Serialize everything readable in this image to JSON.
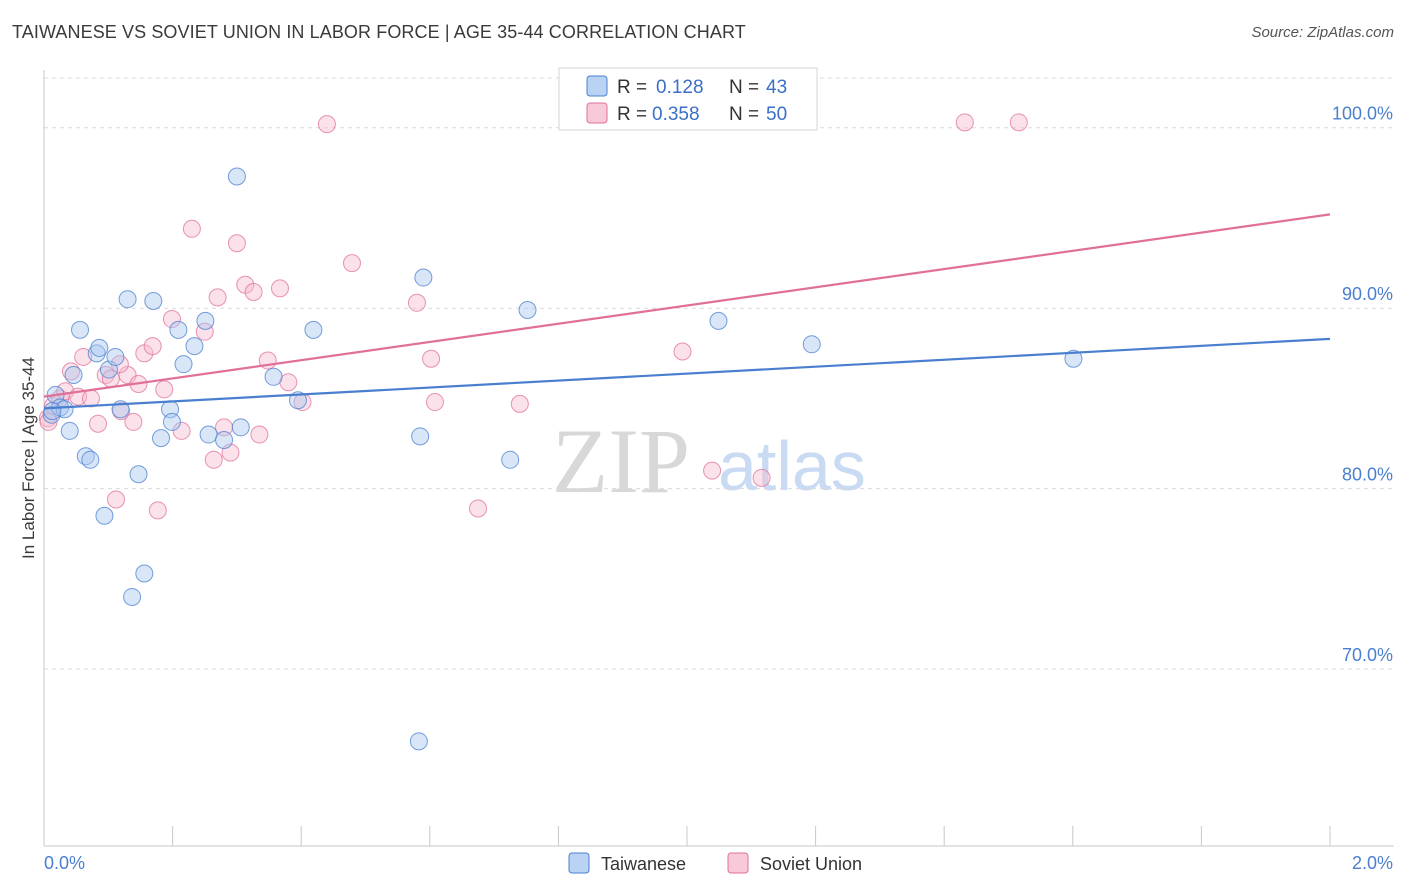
{
  "title": "TAIWANESE VS SOVIET UNION IN LABOR FORCE | AGE 35-44 CORRELATION CHART",
  "source": "Source: ZipAtlas.com",
  "watermark": {
    "zip": "ZIP",
    "atlas": "atlas"
  },
  "colors": {
    "blue": "#4a7fd0",
    "pink": "#e0709a",
    "blue_fill": "#a9c8f0",
    "pink_fill": "#f6bcd0"
  },
  "legend": {
    "rows": [
      {
        "r_label": "R =",
        "r_value": "0.128",
        "n_label": "N =",
        "n_value": "43"
      },
      {
        "r_label": "R =",
        "r_value": "0.358",
        "n_label": "N =",
        "n_value": "50"
      }
    ]
  },
  "chart_data": {
    "type": "scatter",
    "title": "TAIWANESE VS SOVIET UNION IN LABOR FORCE | AGE 35-44 CORRELATION CHART",
    "xlabel": "",
    "ylabel": "In Labor Force | Age 35-44",
    "xlim": [
      0,
      2.0
    ],
    "ylim": [
      60.2,
      103.2
    ],
    "x_tick_labels": [
      "0.0%",
      "2.0%"
    ],
    "y_ticks": [
      70,
      80,
      90,
      100
    ],
    "y_tick_labels": [
      "70.0%",
      "80.0%",
      "90.0%",
      "100.0%"
    ],
    "series": [
      {
        "name": "Taiwanese",
        "color": "blue",
        "trend": {
          "x0": 0.0,
          "y0": 84.45,
          "x1": 2.0,
          "y1": 88.3
        },
        "points": [
          [
            0.012,
            84.1
          ],
          [
            0.018,
            85.2
          ],
          [
            0.025,
            84.5
          ],
          [
            0.032,
            84.4
          ],
          [
            0.04,
            83.2
          ],
          [
            0.046,
            86.3
          ],
          [
            0.056,
            88.8
          ],
          [
            0.065,
            81.8
          ],
          [
            0.072,
            81.6
          ],
          [
            0.082,
            87.5
          ],
          [
            0.086,
            87.8
          ],
          [
            0.094,
            78.5
          ],
          [
            0.101,
            86.6
          ],
          [
            0.111,
            87.3
          ],
          [
            0.119,
            84.4
          ],
          [
            0.13,
            90.5
          ],
          [
            0.137,
            74.0
          ],
          [
            0.147,
            80.8
          ],
          [
            0.156,
            75.3
          ],
          [
            0.17,
            90.4
          ],
          [
            0.182,
            82.8
          ],
          [
            0.196,
            84.4
          ],
          [
            0.199,
            83.7
          ],
          [
            0.209,
            88.8
          ],
          [
            0.217,
            86.9
          ],
          [
            0.234,
            87.9
          ],
          [
            0.251,
            89.3
          ],
          [
            0.256,
            83.0
          ],
          [
            0.28,
            82.7
          ],
          [
            0.3,
            97.3
          ],
          [
            0.306,
            83.4
          ],
          [
            0.357,
            86.2
          ],
          [
            0.395,
            84.9
          ],
          [
            0.419,
            88.8
          ],
          [
            0.583,
            66.0
          ],
          [
            0.585,
            82.9
          ],
          [
            0.59,
            91.7
          ],
          [
            0.725,
            81.6
          ],
          [
            0.752,
            89.9
          ],
          [
            1.049,
            89.3
          ],
          [
            1.194,
            88.0
          ],
          [
            1.601,
            87.2
          ],
          [
            0.013,
            84.3
          ]
        ]
      },
      {
        "name": "Soviet Union",
        "color": "pink",
        "trend": {
          "x0": 0.0,
          "y0": 85.1,
          "x1": 2.0,
          "y1": 95.2
        },
        "points": [
          [
            0.006,
            83.9
          ],
          [
            0.014,
            84.6
          ],
          [
            0.025,
            85.0
          ],
          [
            0.033,
            85.4
          ],
          [
            0.042,
            86.5
          ],
          [
            0.053,
            85.1
          ],
          [
            0.061,
            87.3
          ],
          [
            0.073,
            85.0
          ],
          [
            0.084,
            83.6
          ],
          [
            0.096,
            86.3
          ],
          [
            0.104,
            86.1
          ],
          [
            0.112,
            79.4
          ],
          [
            0.12,
            84.3
          ],
          [
            0.13,
            86.3
          ],
          [
            0.139,
            83.7
          ],
          [
            0.147,
            85.8
          ],
          [
            0.156,
            87.5
          ],
          [
            0.169,
            87.9
          ],
          [
            0.177,
            78.8
          ],
          [
            0.187,
            85.5
          ],
          [
            0.199,
            89.4
          ],
          [
            0.214,
            83.2
          ],
          [
            0.23,
            94.4
          ],
          [
            0.25,
            88.7
          ],
          [
            0.264,
            81.6
          ],
          [
            0.28,
            83.4
          ],
          [
            0.29,
            82.0
          ],
          [
            0.3,
            93.6
          ],
          [
            0.313,
            91.3
          ],
          [
            0.326,
            90.9
          ],
          [
            0.335,
            83.0
          ],
          [
            0.348,
            87.1
          ],
          [
            0.367,
            91.1
          ],
          [
            0.38,
            85.9
          ],
          [
            0.402,
            84.8
          ],
          [
            0.44,
            100.2
          ],
          [
            0.479,
            92.5
          ],
          [
            0.58,
            90.3
          ],
          [
            0.602,
            87.2
          ],
          [
            0.608,
            84.8
          ],
          [
            0.675,
            78.9
          ],
          [
            0.74,
            84.7
          ],
          [
            0.993,
            87.6
          ],
          [
            1.039,
            81.0
          ],
          [
            1.116,
            80.6
          ],
          [
            1.432,
            100.3
          ],
          [
            1.516,
            100.3
          ],
          [
            0.007,
            83.7
          ],
          [
            0.118,
            86.9
          ],
          [
            0.27,
            90.6
          ]
        ]
      }
    ]
  },
  "bottom_legend": [
    "Taiwanese",
    "Soviet Union"
  ]
}
